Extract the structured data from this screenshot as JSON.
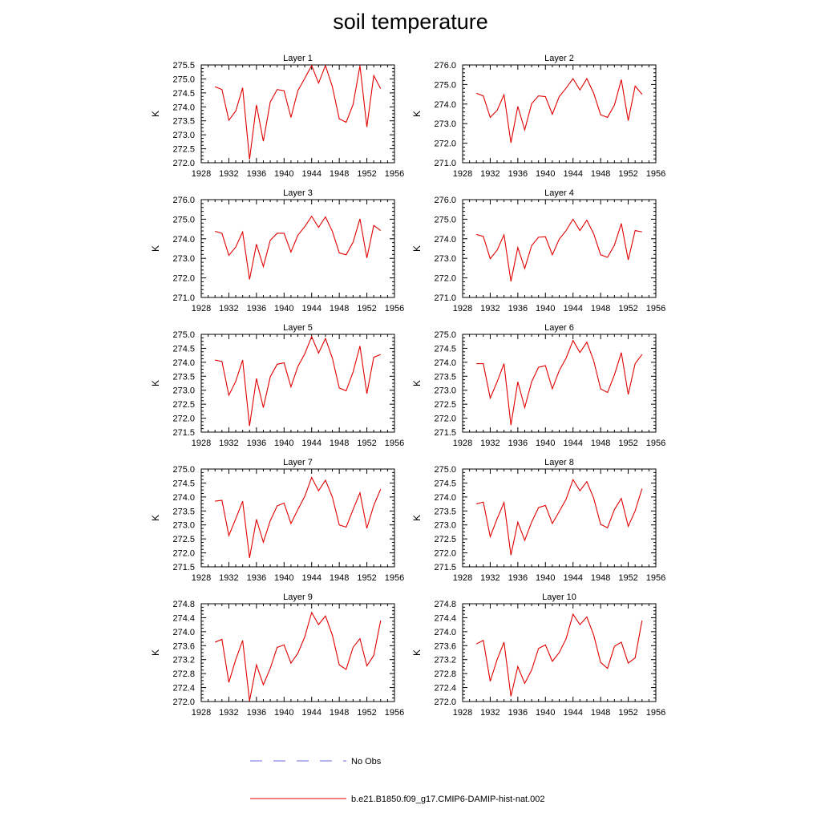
{
  "title": "soil temperature",
  "legend": {
    "placement": "bottom-center",
    "entries": [
      {
        "label": "No Obs",
        "color": "#6a6ad8",
        "style": "dashed"
      },
      {
        "label": "b.e21.B1850.f09_g17.CMIP6-DAMIP-hist-nat.002",
        "color": "#e00000",
        "style": "solid"
      }
    ]
  },
  "colors": {
    "series": "#e00000",
    "axis": "#000000"
  },
  "chart_data": [
    {
      "type": "line",
      "title": "Layer 1",
      "xlabel": "",
      "ylabel": "K",
      "xlim": [
        1928,
        1956
      ],
      "ylim": [
        272.0,
        275.5
      ],
      "grid": false,
      "xticks": [
        1928,
        1932,
        1936,
        1940,
        1944,
        1948,
        1952,
        1956
      ],
      "yticks": [
        "272.0",
        "272.5",
        "273.0",
        "273.5",
        "274.0",
        "274.5",
        "275.0",
        "275.5"
      ],
      "x": [
        1930,
        1931,
        1932,
        1933,
        1934,
        1935,
        1936,
        1937,
        1938,
        1939,
        1940,
        1941,
        1942,
        1943,
        1944,
        1945,
        1946,
        1947,
        1948,
        1949,
        1950,
        1951,
        1952,
        1953,
        1954
      ],
      "series": [
        {
          "name": "b.e21.B1850.f09_g17.CMIP6-DAMIP-hist-nat.002",
          "values": [
            274.72,
            274.62,
            273.52,
            273.85,
            274.68,
            272.12,
            274.07,
            272.77,
            274.17,
            274.62,
            274.58,
            273.62,
            274.58,
            275.02,
            275.48,
            274.85,
            275.48,
            274.72,
            273.57,
            273.45,
            274.08,
            275.47,
            273.28,
            275.12,
            274.65
          ]
        }
      ]
    },
    {
      "type": "line",
      "title": "Layer 2",
      "xlabel": "",
      "ylabel": "K",
      "xlim": [
        1928,
        1956
      ],
      "ylim": [
        271.0,
        276.0
      ],
      "grid": false,
      "xticks": [
        1928,
        1932,
        1936,
        1940,
        1944,
        1948,
        1952,
        1956
      ],
      "yticks": [
        "271.0",
        "272.0",
        "273.0",
        "274.0",
        "275.0",
        "276.0"
      ],
      "x": [
        1930,
        1931,
        1932,
        1933,
        1934,
        1935,
        1936,
        1937,
        1938,
        1939,
        1940,
        1941,
        1942,
        1943,
        1944,
        1945,
        1946,
        1947,
        1948,
        1949,
        1950,
        1951,
        1952,
        1953,
        1954
      ],
      "series": [
        {
          "name": "b.e21.B1850.f09_g17.CMIP6-DAMIP-hist-nat.002",
          "values": [
            274.55,
            274.42,
            273.32,
            273.68,
            274.48,
            272.02,
            273.88,
            272.68,
            274.02,
            274.42,
            274.38,
            273.48,
            274.38,
            274.82,
            275.3,
            274.72,
            275.3,
            274.55,
            273.45,
            273.32,
            273.95,
            275.25,
            273.15,
            274.92,
            274.5
          ]
        }
      ]
    },
    {
      "type": "line",
      "title": "Layer 3",
      "xlabel": "",
      "ylabel": "K",
      "xlim": [
        1928,
        1956
      ],
      "ylim": [
        271.0,
        276.0
      ],
      "grid": false,
      "xticks": [
        1928,
        1932,
        1936,
        1940,
        1944,
        1948,
        1952,
        1956
      ],
      "yticks": [
        "271.0",
        "272.0",
        "273.0",
        "274.0",
        "275.0",
        "276.0"
      ],
      "x": [
        1930,
        1931,
        1932,
        1933,
        1934,
        1935,
        1936,
        1937,
        1938,
        1939,
        1940,
        1941,
        1942,
        1943,
        1944,
        1945,
        1946,
        1947,
        1948,
        1949,
        1950,
        1951,
        1952,
        1953,
        1954
      ],
      "series": [
        {
          "name": "b.e21.B1850.f09_g17.CMIP6-DAMIP-hist-nat.002",
          "values": [
            274.38,
            274.28,
            273.15,
            273.58,
            274.35,
            271.92,
            273.72,
            272.58,
            273.92,
            274.28,
            274.28,
            273.32,
            274.18,
            274.62,
            275.15,
            274.58,
            275.12,
            274.38,
            273.28,
            273.18,
            273.82,
            275.02,
            273.02,
            274.68,
            274.42
          ]
        }
      ]
    },
    {
      "type": "line",
      "title": "Layer 4",
      "xlabel": "",
      "ylabel": "K",
      "xlim": [
        1928,
        1956
      ],
      "ylim": [
        271.0,
        276.0
      ],
      "grid": false,
      "xticks": [
        1928,
        1932,
        1936,
        1940,
        1944,
        1948,
        1952,
        1956
      ],
      "yticks": [
        "271.0",
        "272.0",
        "273.0",
        "274.0",
        "275.0",
        "276.0"
      ],
      "x": [
        1930,
        1931,
        1932,
        1933,
        1934,
        1935,
        1936,
        1937,
        1938,
        1939,
        1940,
        1941,
        1942,
        1943,
        1944,
        1945,
        1946,
        1947,
        1948,
        1949,
        1950,
        1951,
        1952,
        1953,
        1954
      ],
      "series": [
        {
          "name": "b.e21.B1850.f09_g17.CMIP6-DAMIP-hist-nat.002",
          "values": [
            274.22,
            274.12,
            272.98,
            273.42,
            274.2,
            271.82,
            273.55,
            272.48,
            273.65,
            274.08,
            274.1,
            273.18,
            273.98,
            274.42,
            275.0,
            274.42,
            274.95,
            274.25,
            273.18,
            273.05,
            273.68,
            274.78,
            272.92,
            274.42,
            274.35
          ]
        }
      ]
    },
    {
      "type": "line",
      "title": "Layer 5",
      "xlabel": "",
      "ylabel": "K",
      "xlim": [
        1928,
        1956
      ],
      "ylim": [
        271.5,
        275.0
      ],
      "grid": false,
      "xticks": [
        1928,
        1932,
        1936,
        1940,
        1944,
        1948,
        1952,
        1956
      ],
      "yticks": [
        "271.5",
        "272.0",
        "272.5",
        "273.0",
        "273.5",
        "274.0",
        "274.5",
        "275.0"
      ],
      "x": [
        1930,
        1931,
        1932,
        1933,
        1934,
        1935,
        1936,
        1937,
        1938,
        1939,
        1940,
        1941,
        1942,
        1943,
        1944,
        1945,
        1946,
        1947,
        1948,
        1949,
        1950,
        1951,
        1952,
        1953,
        1954
      ],
      "series": [
        {
          "name": "b.e21.B1850.f09_g17.CMIP6-DAMIP-hist-nat.002",
          "values": [
            274.08,
            274.03,
            272.82,
            273.32,
            274.08,
            271.72,
            273.42,
            272.38,
            273.48,
            273.93,
            273.98,
            273.12,
            273.85,
            274.3,
            274.92,
            274.33,
            274.85,
            274.15,
            273.08,
            272.98,
            273.65,
            274.58,
            272.88,
            274.18,
            274.28
          ]
        }
      ]
    },
    {
      "type": "line",
      "title": "Layer 6",
      "xlabel": "",
      "ylabel": "K",
      "xlim": [
        1928,
        1956
      ],
      "ylim": [
        271.5,
        275.0
      ],
      "grid": false,
      "xticks": [
        1928,
        1932,
        1936,
        1940,
        1944,
        1948,
        1952,
        1956
      ],
      "yticks": [
        "271.5",
        "272.0",
        "272.5",
        "273.0",
        "273.5",
        "274.0",
        "274.5",
        "275.0"
      ],
      "x": [
        1930,
        1931,
        1932,
        1933,
        1934,
        1935,
        1936,
        1937,
        1938,
        1939,
        1940,
        1941,
        1942,
        1943,
        1944,
        1945,
        1946,
        1947,
        1948,
        1949,
        1950,
        1951,
        1952,
        1953,
        1954
      ],
      "series": [
        {
          "name": "b.e21.B1850.f09_g17.CMIP6-DAMIP-hist-nat.002",
          "values": [
            273.95,
            273.95,
            272.72,
            273.3,
            273.95,
            271.75,
            273.3,
            272.38,
            273.3,
            273.82,
            273.88,
            273.05,
            273.7,
            274.15,
            274.78,
            274.35,
            274.72,
            274.05,
            273.05,
            272.92,
            273.55,
            274.35,
            272.85,
            273.95,
            274.28
          ]
        }
      ]
    },
    {
      "type": "line",
      "title": "Layer 7",
      "xlabel": "",
      "ylabel": "K",
      "xlim": [
        1928,
        1956
      ],
      "ylim": [
        271.5,
        275.0
      ],
      "grid": false,
      "xticks": [
        1928,
        1932,
        1936,
        1940,
        1944,
        1948,
        1952,
        1956
      ],
      "yticks": [
        "271.5",
        "272.0",
        "272.5",
        "273.0",
        "273.5",
        "274.0",
        "274.5",
        "275.0"
      ],
      "x": [
        1930,
        1931,
        1932,
        1933,
        1934,
        1935,
        1936,
        1937,
        1938,
        1939,
        1940,
        1941,
        1942,
        1943,
        1944,
        1945,
        1946,
        1947,
        1948,
        1949,
        1950,
        1951,
        1952,
        1953,
        1954
      ],
      "series": [
        {
          "name": "b.e21.B1850.f09_g17.CMIP6-DAMIP-hist-nat.002",
          "values": [
            273.85,
            273.88,
            272.62,
            273.22,
            273.85,
            271.82,
            273.2,
            272.38,
            273.15,
            273.68,
            273.78,
            273.05,
            273.55,
            274.02,
            274.7,
            274.22,
            274.6,
            274.0,
            273.0,
            272.92,
            273.55,
            274.15,
            272.88,
            273.7,
            274.28
          ]
        }
      ]
    },
    {
      "type": "line",
      "title": "Layer 8",
      "xlabel": "",
      "ylabel": "K",
      "xlim": [
        1928,
        1956
      ],
      "ylim": [
        271.5,
        275.0
      ],
      "grid": false,
      "xticks": [
        1928,
        1932,
        1936,
        1940,
        1944,
        1948,
        1952,
        1956
      ],
      "yticks": [
        "271.5",
        "272.0",
        "272.5",
        "273.0",
        "273.5",
        "274.0",
        "274.5",
        "275.0"
      ],
      "x": [
        1930,
        1931,
        1932,
        1933,
        1934,
        1935,
        1936,
        1937,
        1938,
        1939,
        1940,
        1941,
        1942,
        1943,
        1944,
        1945,
        1946,
        1947,
        1948,
        1949,
        1950,
        1951,
        1952,
        1953,
        1954
      ],
      "series": [
        {
          "name": "b.e21.B1850.f09_g17.CMIP6-DAMIP-hist-nat.002",
          "values": [
            273.75,
            273.82,
            272.58,
            273.22,
            273.8,
            271.92,
            273.1,
            272.45,
            273.1,
            273.62,
            273.7,
            273.05,
            273.48,
            273.92,
            274.62,
            274.22,
            274.55,
            273.95,
            273.02,
            272.9,
            273.55,
            273.95,
            272.95,
            273.5,
            274.3
          ]
        }
      ]
    },
    {
      "type": "line",
      "title": "Layer 9",
      "xlabel": "",
      "ylabel": "K",
      "xlim": [
        1928,
        1956
      ],
      "ylim": [
        272.0,
        274.8
      ],
      "grid": false,
      "xticks": [
        1928,
        1932,
        1936,
        1940,
        1944,
        1948,
        1952,
        1956
      ],
      "yticks": [
        "272.0",
        "272.4",
        "272.8",
        "273.2",
        "273.6",
        "274.0",
        "274.4",
        "274.8"
      ],
      "x": [
        1930,
        1931,
        1932,
        1933,
        1934,
        1935,
        1936,
        1937,
        1938,
        1939,
        1940,
        1941,
        1942,
        1943,
        1944,
        1945,
        1946,
        1947,
        1948,
        1949,
        1950,
        1951,
        1952,
        1953,
        1954
      ],
      "series": [
        {
          "name": "b.e21.B1850.f09_g17.CMIP6-DAMIP-hist-nat.002",
          "values": [
            273.7,
            273.78,
            272.55,
            273.2,
            273.75,
            272.02,
            273.05,
            272.48,
            272.95,
            273.55,
            273.62,
            273.1,
            273.38,
            273.85,
            274.55,
            274.2,
            274.45,
            273.9,
            273.05,
            272.92,
            273.55,
            273.8,
            273.02,
            273.32,
            274.32
          ]
        }
      ]
    },
    {
      "type": "line",
      "title": "Layer 10",
      "xlabel": "",
      "ylabel": "K",
      "xlim": [
        1928,
        1956
      ],
      "ylim": [
        272.0,
        274.8
      ],
      "grid": false,
      "xticks": [
        1928,
        1932,
        1936,
        1940,
        1944,
        1948,
        1952,
        1956
      ],
      "yticks": [
        "272.0",
        "272.4",
        "272.8",
        "273.2",
        "273.6",
        "274.0",
        "274.4",
        "274.8"
      ],
      "x": [
        1930,
        1931,
        1932,
        1933,
        1934,
        1935,
        1936,
        1937,
        1938,
        1939,
        1940,
        1941,
        1942,
        1943,
        1944,
        1945,
        1946,
        1947,
        1948,
        1949,
        1950,
        1951,
        1952,
        1953,
        1954
      ],
      "series": [
        {
          "name": "b.e21.B1850.f09_g17.CMIP6-DAMIP-hist-nat.002",
          "values": [
            273.65,
            273.75,
            272.58,
            273.2,
            273.7,
            272.15,
            273.0,
            272.52,
            272.9,
            273.52,
            273.62,
            273.15,
            273.4,
            273.8,
            274.5,
            274.2,
            274.42,
            273.9,
            273.12,
            272.95,
            273.58,
            273.7,
            273.1,
            273.25,
            274.32
          ]
        }
      ]
    }
  ]
}
